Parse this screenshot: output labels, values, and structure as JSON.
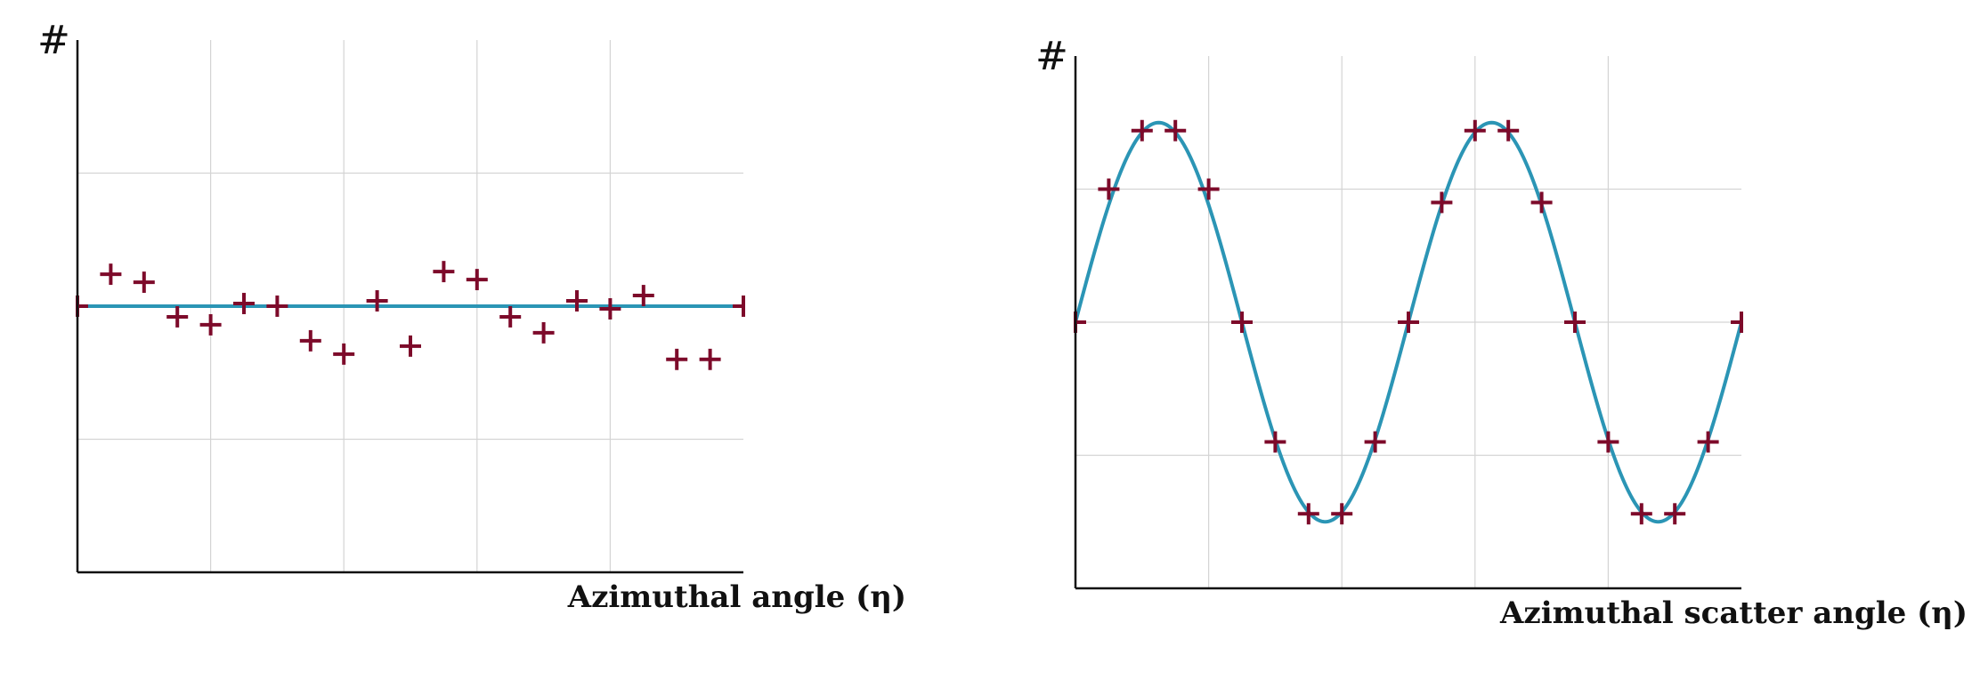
{
  "colors": {
    "marker": "#7d0a2a",
    "fit_line": "#2b95b5",
    "grid": "#d4d4d4",
    "axis": "#111111"
  },
  "chart_data": [
    {
      "type": "scatter",
      "ylabel": "#",
      "xlabel": "Azimuthal angle (η)",
      "xlim": [
        0,
        20
      ],
      "ylim": [
        -1,
        1
      ],
      "grid": true,
      "x_gridlines": [
        4,
        8,
        12,
        16
      ],
      "y_gridlines": [
        -0.5,
        0.5
      ],
      "points": {
        "x": [
          0,
          1,
          2,
          3,
          4,
          5,
          6,
          7,
          8,
          9,
          10,
          11,
          12,
          13,
          14,
          15,
          16,
          17,
          18,
          19,
          20
        ],
        "y": [
          0.0,
          0.12,
          0.09,
          -0.04,
          -0.07,
          0.01,
          0.0,
          -0.13,
          -0.18,
          0.02,
          -0.15,
          0.13,
          0.1,
          -0.04,
          -0.1,
          0.02,
          -0.01,
          0.04,
          -0.2,
          -0.2,
          0.0
        ],
        "err": [
          0.07,
          0.07,
          0.07,
          0.07,
          0.07,
          0.07,
          0.07,
          0.07,
          0.07,
          0.07,
          0.07,
          0.07,
          0.07,
          0.07,
          0.07,
          0.07,
          0.07,
          0.07,
          0.07,
          0.07,
          0.07
        ]
      },
      "fit": {
        "type": "constant",
        "value": 0.0
      }
    },
    {
      "type": "scatter",
      "ylabel": "#",
      "xlabel": "Azimuthal scatter angle (η)",
      "xlim": [
        0,
        20
      ],
      "ylim": [
        -1,
        1
      ],
      "grid": true,
      "x_gridlines": [
        4,
        8,
        12,
        16
      ],
      "y_gridlines": [
        -0.5,
        0,
        0.5
      ],
      "points": {
        "x": [
          0,
          1,
          2,
          3,
          4,
          5,
          6,
          7,
          8,
          9,
          10,
          11,
          12,
          13,
          14,
          15,
          16,
          17,
          18,
          19,
          20
        ],
        "y": [
          0.0,
          0.5,
          0.72,
          0.72,
          0.5,
          0.0,
          -0.45,
          -0.72,
          -0.72,
          -0.45,
          0.0,
          0.45,
          0.72,
          0.72,
          0.45,
          0.0,
          -0.45,
          -0.72,
          -0.72,
          -0.45,
          0.0
        ],
        "err": [
          0.07,
          0.07,
          0.07,
          0.07,
          0.07,
          0.07,
          0.07,
          0.07,
          0.07,
          0.07,
          0.07,
          0.07,
          0.07,
          0.07,
          0.07,
          0.07,
          0.07,
          0.07,
          0.07,
          0.07,
          0.07
        ]
      },
      "fit": {
        "type": "sine",
        "amplitude": 0.75,
        "period": 10.0,
        "phase": 0.0
      }
    }
  ]
}
